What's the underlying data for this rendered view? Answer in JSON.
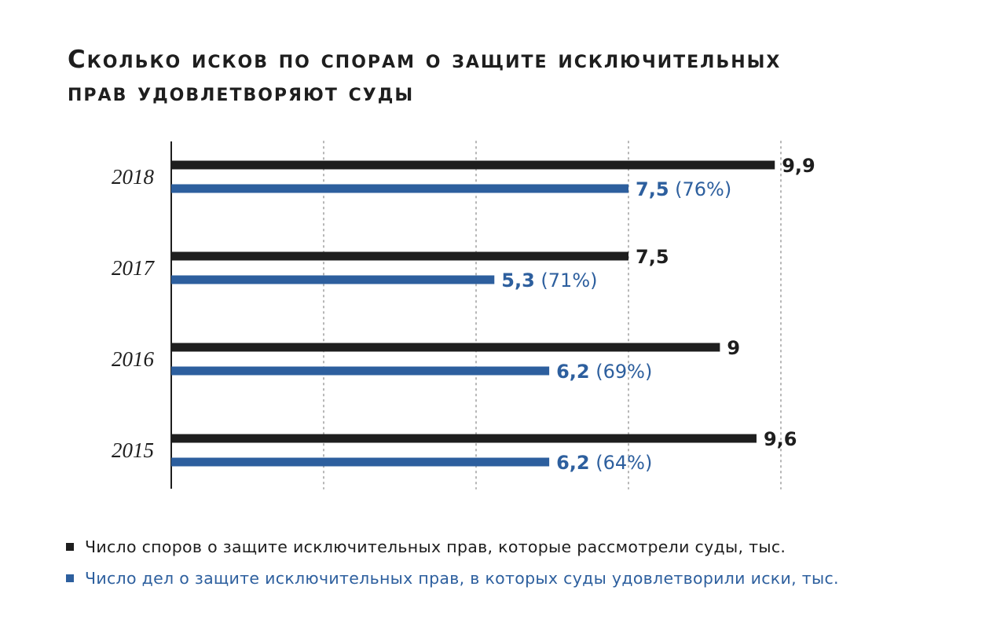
{
  "title": {
    "line1": "Сколько исков по спорам о защите исключительных",
    "line2": "прав удовлетворяют суды"
  },
  "chart_data": {
    "type": "bar",
    "orientation": "horizontal",
    "categories": [
      "2018",
      "2017",
      "2016",
      "2015"
    ],
    "series": [
      {
        "name": "Число споров о защите исключительных прав, которые рассмотрели суды, тыс.",
        "color": "#1e1e1e",
        "values": [
          9.9,
          7.5,
          9,
          9.6
        ],
        "labels": [
          "9,9",
          "7,5",
          "9",
          "9,6"
        ],
        "percent_labels": [
          "",
          "",
          "",
          ""
        ]
      },
      {
        "name": "Число дел о защите исключительных прав, в которых суды удовлетворили иски, тыс.",
        "color": "#2d5f9e",
        "values": [
          7.5,
          5.3,
          6.2,
          6.2
        ],
        "labels": [
          "7,5",
          "5,3",
          "6,2",
          "6,2"
        ],
        "percent_labels": [
          "(76%)",
          "(71%)",
          "(69%)",
          "(64%)"
        ]
      }
    ],
    "xlim": [
      0,
      10
    ],
    "grid": true,
    "legend_position": "bottom-left"
  }
}
